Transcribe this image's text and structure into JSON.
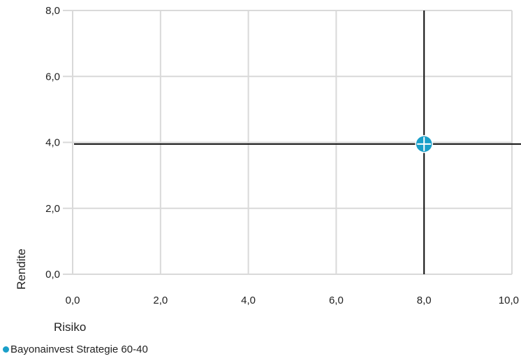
{
  "chart_data": {
    "type": "scatter",
    "title": "",
    "xlabel": "Risiko",
    "ylabel": "Rendite",
    "xlim": [
      0,
      10
    ],
    "ylim": [
      0,
      8
    ],
    "x_ticks": [
      "0,0",
      "2,0",
      "4,0",
      "6,0",
      "8,0",
      "10,0"
    ],
    "y_ticks": [
      "0,0",
      "2,0",
      "4,0",
      "6,0",
      "8,0"
    ],
    "grid": true,
    "legend_position": "bottom-left",
    "series": [
      {
        "name": "Bayonainvest Strategie 60-40",
        "color": "#1a9fc9",
        "points": [
          {
            "x": 8.0,
            "y": 3.95
          }
        ]
      }
    ],
    "crosshair": {
      "x": 8.0,
      "y": 3.95,
      "color": "#111111"
    }
  }
}
